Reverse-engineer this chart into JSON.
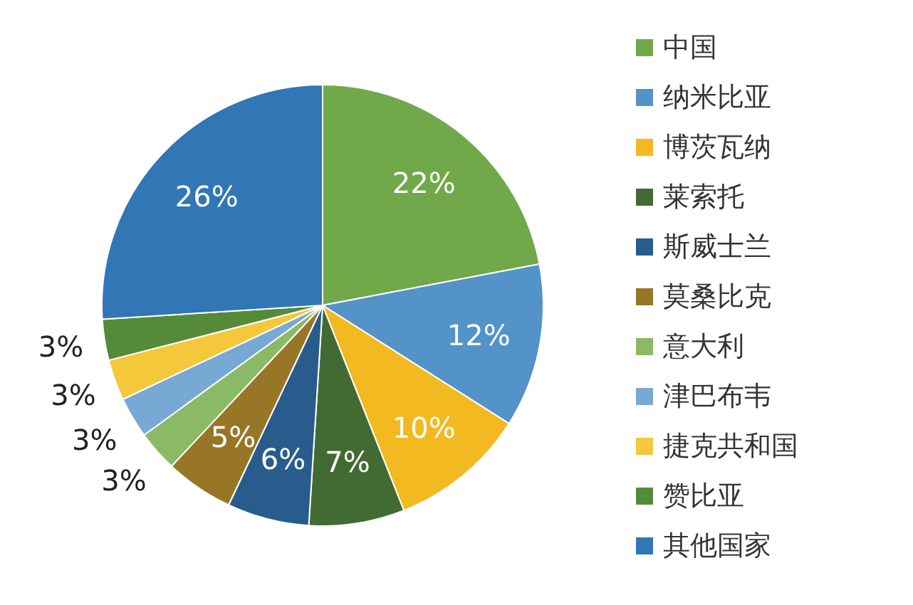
{
  "chart_data": {
    "type": "pie",
    "categories": [
      "中国",
      "纳米比亚",
      "博茨瓦纳",
      "莱索托",
      "斯威士兰",
      "莫桑比克",
      "意大利",
      "津巴布韦",
      "捷克共和国",
      "赞比亚",
      "其他国家"
    ],
    "values": [
      22,
      12,
      10,
      7,
      6,
      5,
      3,
      3,
      3,
      3,
      26
    ],
    "colors": [
      "#70a84a",
      "#5393c8",
      "#f2b920",
      "#426b33",
      "#275c8c",
      "#977628",
      "#8aba66",
      "#78a8d4",
      "#f5c73b",
      "#558a38",
      "#3176b5"
    ],
    "value_labels": [
      "22%",
      "12%",
      "10%",
      "7%",
      "6%",
      "5%",
      "3%",
      "3%",
      "3%",
      "3%",
      "26%"
    ],
    "legend": "right"
  }
}
